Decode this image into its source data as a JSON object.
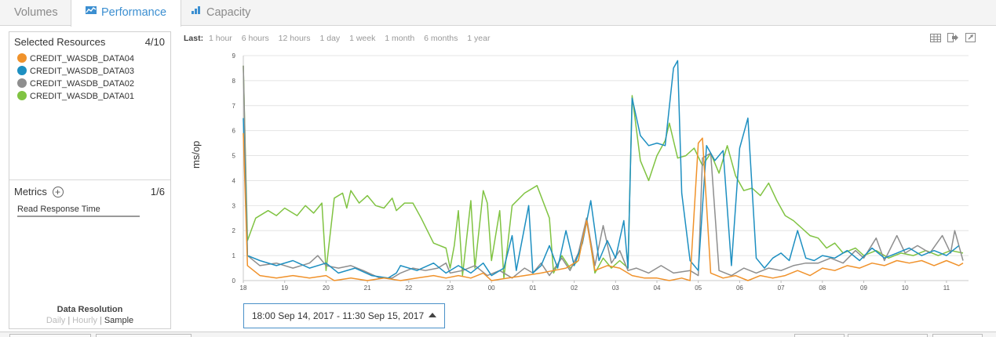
{
  "tabs": [
    {
      "label": "Volumes",
      "icon": "none",
      "active": false
    },
    {
      "label": "Performance",
      "icon": "line-chart-icon",
      "active": true
    },
    {
      "label": "Capacity",
      "icon": "bar-chart-icon",
      "active": false
    }
  ],
  "left_panel": {
    "selected_resources_label": "Selected Resources",
    "selected_resources_count": "4/10",
    "resources": [
      {
        "name": "CREDIT_WASDB_DATA04",
        "color": "#f0922b"
      },
      {
        "name": "CREDIT_WASDB_DATA03",
        "color": "#1d8fc1"
      },
      {
        "name": "CREDIT_WASDB_DATA02",
        "color": "#8e8e8e"
      },
      {
        "name": "CREDIT_WASDB_DATA01",
        "color": "#80c342"
      }
    ],
    "metrics_label": "Metrics",
    "metrics_count": "1/6",
    "metric_selected": "Read Response Time",
    "data_resolution": {
      "title": "Data Resolution",
      "options": [
        "Daily",
        "Hourly",
        "Sample"
      ],
      "selected": "Sample"
    }
  },
  "time_range": {
    "label": "Last:",
    "options": [
      "1 hour",
      "6 hours",
      "12 hours",
      "1 day",
      "1 week",
      "1 month",
      "6 months",
      "1 year"
    ]
  },
  "toolbar_icons": [
    "table-icon",
    "export-icon",
    "expand-icon"
  ],
  "selected_range": "18:00 Sep 14, 2017 - 11:30 Sep 15, 2017",
  "chart_data": {
    "type": "line",
    "ylabel": "ms/op",
    "ylim": [
      0,
      9
    ],
    "yticks": [
      0,
      1,
      2,
      3,
      4,
      5,
      6,
      7,
      8,
      9
    ],
    "x_tick_labels": [
      "18",
      "19",
      "20",
      "21",
      "22",
      "23",
      "00",
      "01",
      "02",
      "03",
      "04",
      "05",
      "06",
      "07",
      "08",
      "09",
      "10",
      "11"
    ],
    "x_range_hours": [
      0,
      17.6
    ],
    "grid": "horizontal",
    "series": [
      {
        "name": "CREDIT_WASDB_DATA01",
        "color": "#80c342",
        "points": [
          [
            0,
            8.6
          ],
          [
            0.1,
            1.6
          ],
          [
            0.3,
            2.5
          ],
          [
            0.6,
            2.8
          ],
          [
            0.8,
            2.6
          ],
          [
            1.0,
            2.9
          ],
          [
            1.3,
            2.6
          ],
          [
            1.5,
            3.0
          ],
          [
            1.7,
            2.7
          ],
          [
            1.9,
            3.1
          ],
          [
            2.0,
            0.4
          ],
          [
            2.2,
            3.3
          ],
          [
            2.4,
            3.5
          ],
          [
            2.5,
            2.9
          ],
          [
            2.6,
            3.6
          ],
          [
            2.8,
            3.1
          ],
          [
            3.0,
            3.4
          ],
          [
            3.2,
            3.0
          ],
          [
            3.4,
            2.9
          ],
          [
            3.6,
            3.3
          ],
          [
            3.7,
            2.8
          ],
          [
            3.9,
            3.1
          ],
          [
            4.1,
            3.1
          ],
          [
            4.3,
            2.5
          ],
          [
            4.6,
            1.5
          ],
          [
            4.9,
            1.3
          ],
          [
            5.0,
            0.5
          ],
          [
            5.1,
            1.4
          ],
          [
            5.2,
            2.8
          ],
          [
            5.3,
            0.2
          ],
          [
            5.5,
            3.2
          ],
          [
            5.6,
            0.5
          ],
          [
            5.8,
            3.6
          ],
          [
            5.9,
            3.1
          ],
          [
            6.0,
            0.8
          ],
          [
            6.2,
            2.8
          ],
          [
            6.3,
            0.1
          ],
          [
            6.5,
            3.0
          ],
          [
            6.8,
            3.5
          ],
          [
            7.1,
            3.8
          ],
          [
            7.4,
            2.5
          ],
          [
            7.5,
            0.3
          ],
          [
            7.7,
            1.0
          ],
          [
            7.9,
            0.5
          ],
          [
            8.1,
            0.8
          ],
          [
            8.3,
            2.5
          ],
          [
            8.5,
            0.3
          ],
          [
            8.7,
            0.9
          ],
          [
            8.9,
            0.5
          ],
          [
            9.1,
            0.8
          ],
          [
            9.3,
            0.5
          ],
          [
            9.4,
            7.4
          ],
          [
            9.6,
            4.8
          ],
          [
            9.8,
            4.0
          ],
          [
            10.0,
            5.0
          ],
          [
            10.2,
            5.6
          ],
          [
            10.3,
            6.3
          ],
          [
            10.5,
            4.9
          ],
          [
            10.7,
            5.0
          ],
          [
            10.9,
            5.3
          ],
          [
            11.1,
            4.6
          ],
          [
            11.3,
            5.1
          ],
          [
            11.5,
            4.3
          ],
          [
            11.7,
            5.4
          ],
          [
            11.9,
            4.2
          ],
          [
            12.1,
            3.6
          ],
          [
            12.3,
            3.7
          ],
          [
            12.5,
            3.4
          ],
          [
            12.7,
            3.9
          ],
          [
            12.9,
            3.2
          ],
          [
            13.1,
            2.6
          ],
          [
            13.3,
            2.4
          ],
          [
            13.5,
            2.1
          ],
          [
            13.7,
            1.8
          ],
          [
            13.9,
            1.7
          ],
          [
            14.1,
            1.3
          ],
          [
            14.3,
            1.5
          ],
          [
            14.5,
            1.1
          ],
          [
            14.8,
            1.3
          ],
          [
            15.0,
            1.0
          ],
          [
            15.3,
            1.2
          ],
          [
            15.6,
            0.9
          ],
          [
            15.9,
            1.1
          ],
          [
            16.2,
            1.0
          ],
          [
            16.5,
            1.2
          ],
          [
            16.8,
            1.0
          ],
          [
            17.1,
            1.2
          ],
          [
            17.4,
            1.1
          ]
        ]
      },
      {
        "name": "CREDIT_WASDB_DATA02",
        "color": "#8e8e8e",
        "points": [
          [
            0,
            8.6
          ],
          [
            0.1,
            1.0
          ],
          [
            0.4,
            0.6
          ],
          [
            0.8,
            0.7
          ],
          [
            1.2,
            0.5
          ],
          [
            1.6,
            0.7
          ],
          [
            1.8,
            1.0
          ],
          [
            2.0,
            0.6
          ],
          [
            2.3,
            0.5
          ],
          [
            2.6,
            0.6
          ],
          [
            2.9,
            0.4
          ],
          [
            3.3,
            0.1
          ],
          [
            3.6,
            0.1
          ],
          [
            3.8,
            0.3
          ],
          [
            4.1,
            0.5
          ],
          [
            4.4,
            0.4
          ],
          [
            4.7,
            0.5
          ],
          [
            4.9,
            0.7
          ],
          [
            5.0,
            0.3
          ],
          [
            5.3,
            0.4
          ],
          [
            5.6,
            0.6
          ],
          [
            5.9,
            0.2
          ],
          [
            6.2,
            0.4
          ],
          [
            6.5,
            0.1
          ],
          [
            6.8,
            0.5
          ],
          [
            7.0,
            0.3
          ],
          [
            7.2,
            0.7
          ],
          [
            7.4,
            0.2
          ],
          [
            7.7,
            0.9
          ],
          [
            7.9,
            0.4
          ],
          [
            8.1,
            1.1
          ],
          [
            8.3,
            2.5
          ],
          [
            8.5,
            0.6
          ],
          [
            8.7,
            2.2
          ],
          [
            8.9,
            0.7
          ],
          [
            9.1,
            1.2
          ],
          [
            9.3,
            0.4
          ],
          [
            9.5,
            0.5
          ],
          [
            9.8,
            0.3
          ],
          [
            10.1,
            0.6
          ],
          [
            10.4,
            0.3
          ],
          [
            10.8,
            0.4
          ],
          [
            11.0,
            0.2
          ],
          [
            11.1,
            4.9
          ],
          [
            11.3,
            5.1
          ],
          [
            11.5,
            0.4
          ],
          [
            11.8,
            0.2
          ],
          [
            12.1,
            0.5
          ],
          [
            12.4,
            0.3
          ],
          [
            12.7,
            0.5
          ],
          [
            13.0,
            0.4
          ],
          [
            13.3,
            0.6
          ],
          [
            13.6,
            0.7
          ],
          [
            13.9,
            0.7
          ],
          [
            14.2,
            0.9
          ],
          [
            14.5,
            0.7
          ],
          [
            14.8,
            1.2
          ],
          [
            15.0,
            0.9
          ],
          [
            15.3,
            1.7
          ],
          [
            15.5,
            0.8
          ],
          [
            15.8,
            1.8
          ],
          [
            16.0,
            1.1
          ],
          [
            16.3,
            1.4
          ],
          [
            16.6,
            1.1
          ],
          [
            16.9,
            1.8
          ],
          [
            17.1,
            1.1
          ],
          [
            17.2,
            2.0
          ],
          [
            17.4,
            0.8
          ]
        ]
      },
      {
        "name": "CREDIT_WASDB_DATA03",
        "color": "#1d8fc1",
        "points": [
          [
            0,
            6.5
          ],
          [
            0.1,
            1.0
          ],
          [
            0.4,
            0.8
          ],
          [
            0.8,
            0.6
          ],
          [
            1.2,
            0.8
          ],
          [
            1.6,
            0.5
          ],
          [
            2.0,
            0.7
          ],
          [
            2.3,
            0.3
          ],
          [
            2.7,
            0.5
          ],
          [
            3.1,
            0.2
          ],
          [
            3.5,
            0.1
          ],
          [
            3.7,
            0.3
          ],
          [
            3.8,
            0.6
          ],
          [
            4.2,
            0.4
          ],
          [
            4.6,
            0.7
          ],
          [
            4.9,
            0.3
          ],
          [
            5.2,
            0.6
          ],
          [
            5.5,
            0.3
          ],
          [
            5.8,
            0.7
          ],
          [
            6.0,
            0.2
          ],
          [
            6.3,
            0.5
          ],
          [
            6.5,
            1.8
          ],
          [
            6.6,
            0.4
          ],
          [
            6.9,
            3.0
          ],
          [
            7.0,
            0.3
          ],
          [
            7.2,
            0.6
          ],
          [
            7.4,
            1.4
          ],
          [
            7.6,
            0.5
          ],
          [
            7.8,
            2.0
          ],
          [
            8.0,
            0.6
          ],
          [
            8.2,
            1.5
          ],
          [
            8.4,
            3.2
          ],
          [
            8.6,
            0.8
          ],
          [
            8.8,
            1.6
          ],
          [
            9.0,
            0.9
          ],
          [
            9.2,
            2.4
          ],
          [
            9.3,
            0.5
          ],
          [
            9.4,
            7.3
          ],
          [
            9.6,
            5.8
          ],
          [
            9.8,
            5.4
          ],
          [
            10.0,
            5.5
          ],
          [
            10.2,
            5.4
          ],
          [
            10.4,
            8.5
          ],
          [
            10.5,
            8.8
          ],
          [
            10.6,
            3.5
          ],
          [
            10.8,
            0.8
          ],
          [
            11.0,
            0.4
          ],
          [
            11.2,
            5.4
          ],
          [
            11.4,
            4.8
          ],
          [
            11.6,
            5.2
          ],
          [
            11.8,
            0.6
          ],
          [
            12.0,
            5.3
          ],
          [
            12.2,
            6.5
          ],
          [
            12.4,
            0.9
          ],
          [
            12.6,
            0.5
          ],
          [
            12.8,
            0.9
          ],
          [
            13.0,
            1.1
          ],
          [
            13.2,
            0.8
          ],
          [
            13.4,
            2.0
          ],
          [
            13.6,
            0.9
          ],
          [
            13.8,
            0.8
          ],
          [
            14.0,
            1.0
          ],
          [
            14.3,
            0.9
          ],
          [
            14.6,
            1.2
          ],
          [
            14.9,
            0.8
          ],
          [
            15.2,
            1.3
          ],
          [
            15.5,
            0.9
          ],
          [
            15.8,
            1.1
          ],
          [
            16.1,
            1.3
          ],
          [
            16.4,
            1.0
          ],
          [
            16.7,
            1.2
          ],
          [
            17.0,
            1.0
          ],
          [
            17.3,
            1.4
          ]
        ]
      },
      {
        "name": "CREDIT_WASDB_DATA04",
        "color": "#f0922b",
        "points": [
          [
            0,
            5.9
          ],
          [
            0.1,
            0.6
          ],
          [
            0.4,
            0.2
          ],
          [
            0.8,
            0.1
          ],
          [
            1.2,
            0.2
          ],
          [
            1.6,
            0.1
          ],
          [
            2.0,
            0.2
          ],
          [
            2.2,
            0.0
          ],
          [
            2.6,
            0.1
          ],
          [
            3.0,
            0.0
          ],
          [
            3.4,
            0.1
          ],
          [
            3.8,
            0.0
          ],
          [
            4.2,
            0.1
          ],
          [
            4.6,
            0.2
          ],
          [
            4.9,
            0.1
          ],
          [
            5.2,
            0.2
          ],
          [
            5.5,
            0.1
          ],
          [
            5.8,
            0.3
          ],
          [
            6.0,
            0.0
          ],
          [
            6.4,
            0.1
          ],
          [
            6.8,
            0.2
          ],
          [
            7.2,
            0.3
          ],
          [
            7.5,
            0.4
          ],
          [
            7.8,
            0.5
          ],
          [
            8.1,
            0.8
          ],
          [
            8.3,
            2.4
          ],
          [
            8.5,
            0.4
          ],
          [
            8.8,
            0.6
          ],
          [
            9.1,
            0.5
          ],
          [
            9.4,
            0.2
          ],
          [
            9.7,
            0.1
          ],
          [
            10.0,
            0.1
          ],
          [
            10.3,
            0.0
          ],
          [
            10.6,
            0.1
          ],
          [
            10.8,
            0.0
          ],
          [
            11.0,
            5.5
          ],
          [
            11.1,
            5.7
          ],
          [
            11.3,
            0.3
          ],
          [
            11.6,
            0.1
          ],
          [
            11.9,
            0.2
          ],
          [
            12.2,
            0.0
          ],
          [
            12.5,
            0.2
          ],
          [
            12.8,
            0.1
          ],
          [
            13.1,
            0.2
          ],
          [
            13.4,
            0.4
          ],
          [
            13.7,
            0.2
          ],
          [
            14.0,
            0.5
          ],
          [
            14.3,
            0.4
          ],
          [
            14.6,
            0.6
          ],
          [
            14.9,
            0.5
          ],
          [
            15.2,
            0.7
          ],
          [
            15.5,
            0.6
          ],
          [
            15.8,
            0.8
          ],
          [
            16.1,
            0.7
          ],
          [
            16.4,
            0.8
          ],
          [
            16.7,
            0.6
          ],
          [
            17.0,
            0.8
          ],
          [
            17.3,
            0.6
          ],
          [
            17.4,
            0.7
          ]
        ]
      }
    ]
  }
}
